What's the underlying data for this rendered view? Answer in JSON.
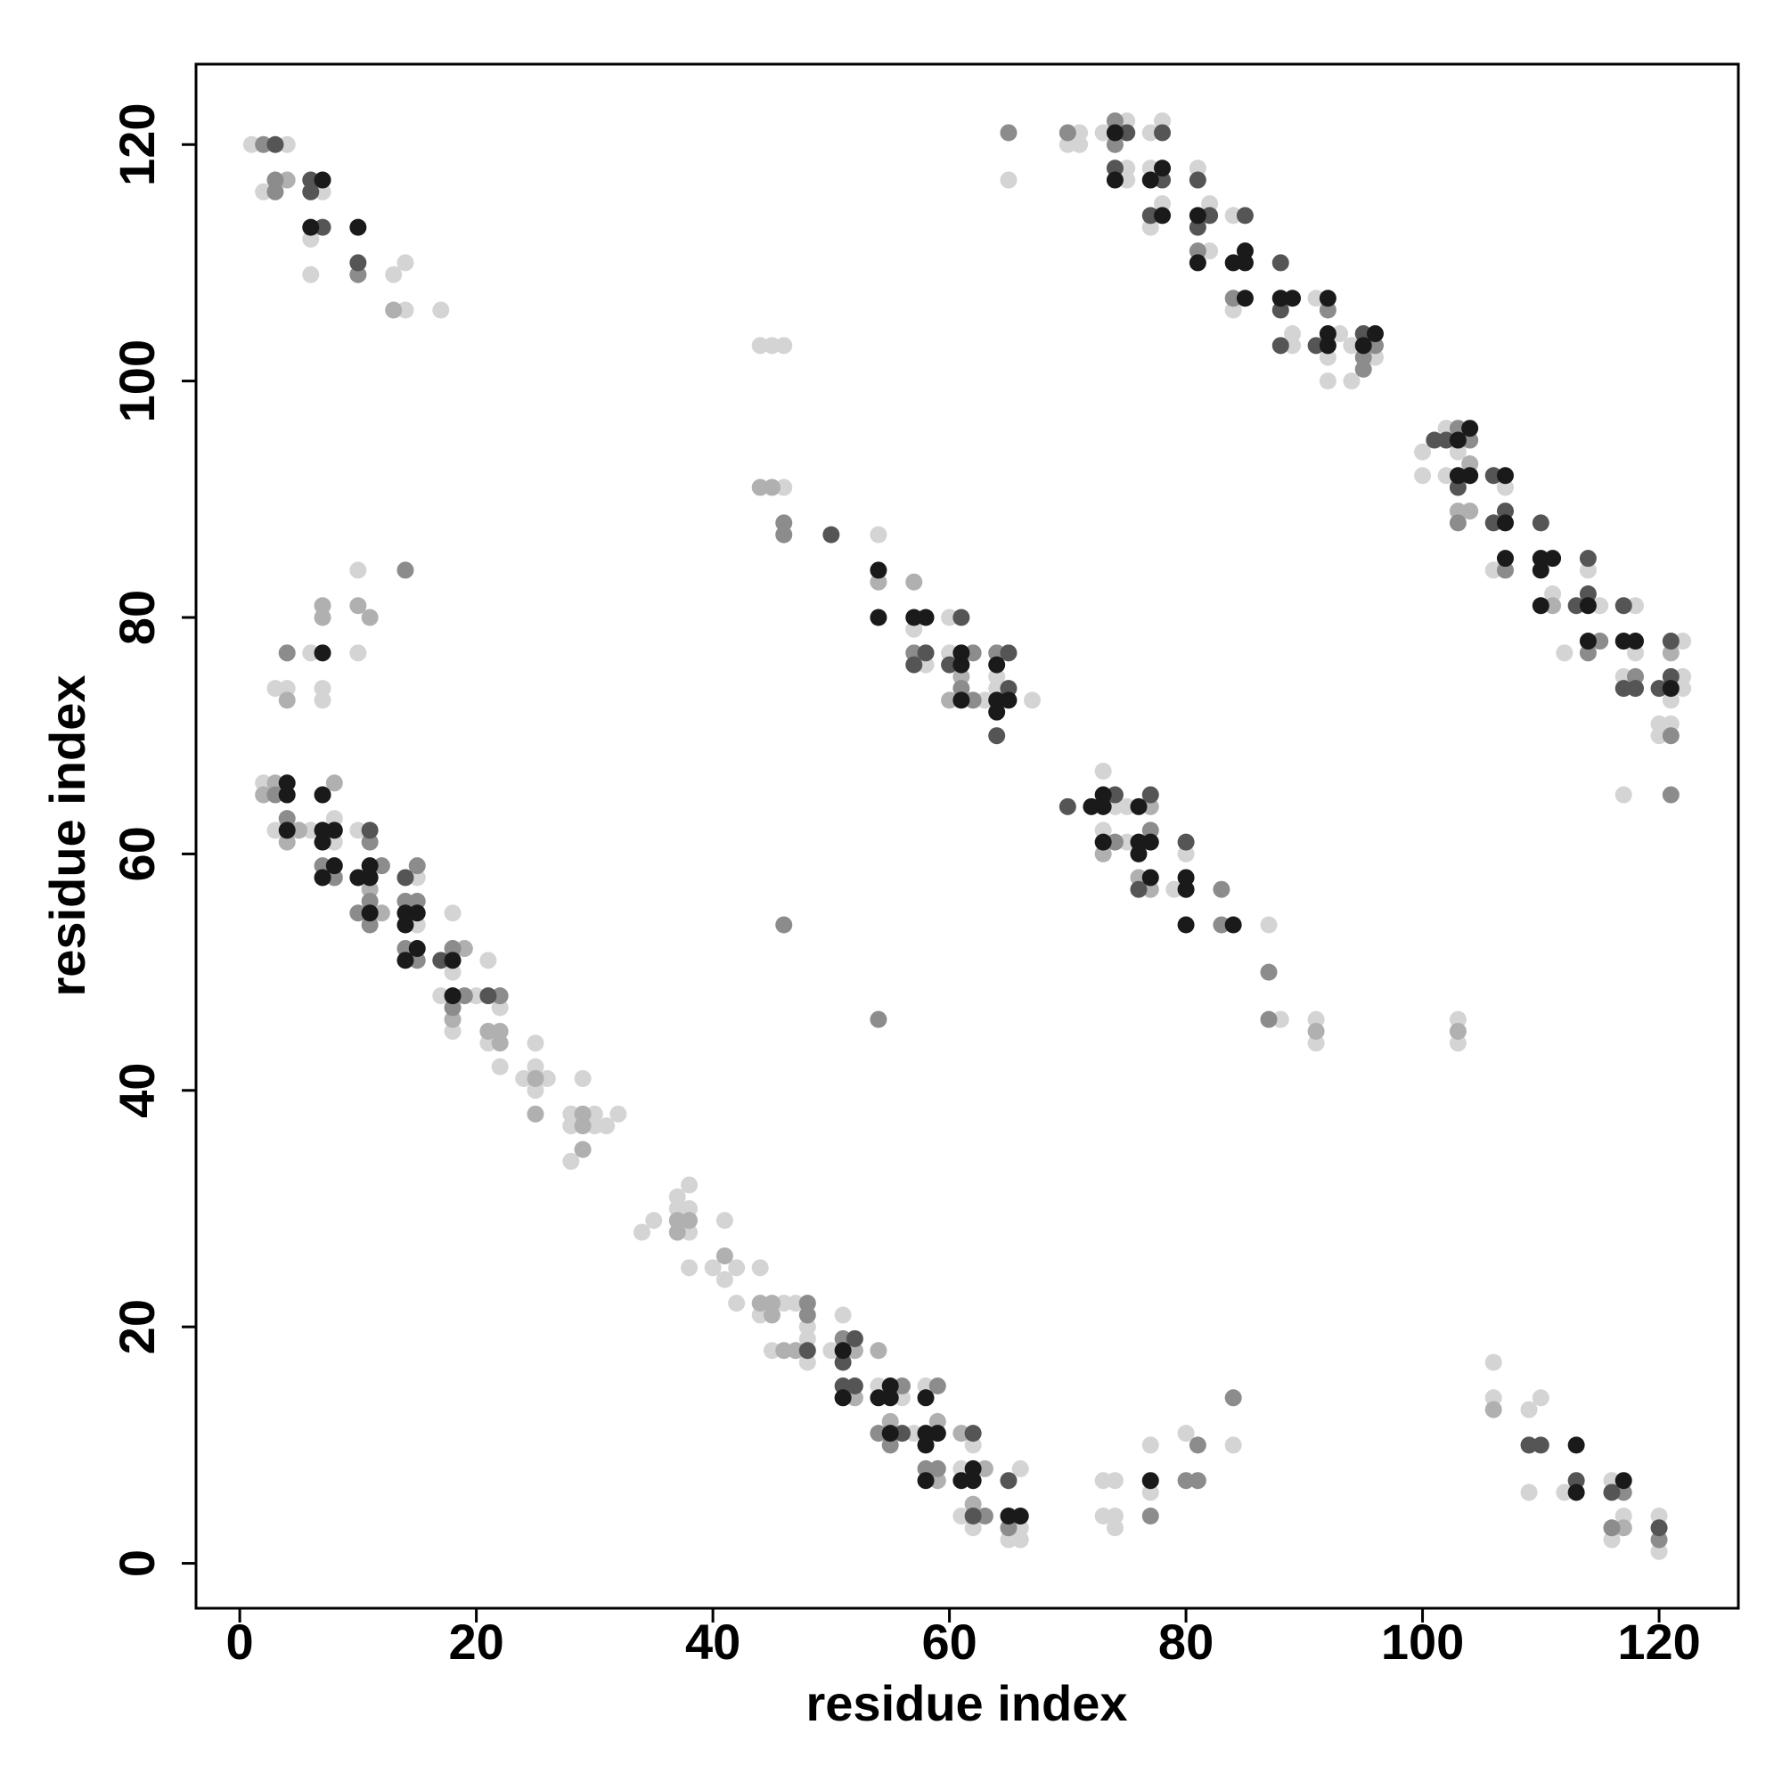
{
  "chart_data": {
    "type": "scatter",
    "x_label": "residue index",
    "y_label": "residue index",
    "xlim": [
      -3.7,
      126.7
    ],
    "ylim": [
      -3.8,
      126.8
    ],
    "xticks": [
      0,
      20,
      40,
      60,
      80,
      100,
      120
    ],
    "yticks": [
      0,
      20,
      40,
      60,
      80,
      100,
      120
    ],
    "series": [
      {
        "color": "#d4d4d4",
        "x": [
          1,
          4,
          2,
          7,
          6,
          6,
          13,
          14,
          14,
          17,
          65,
          70,
          71,
          71,
          73,
          75,
          75,
          75,
          77,
          78,
          77,
          77,
          78,
          81,
          82,
          82,
          84,
          84,
          89,
          89,
          91,
          92,
          92,
          93,
          94,
          94,
          96,
          44,
          45,
          46,
          46,
          54,
          57,
          58,
          60,
          60,
          64,
          64,
          63,
          67,
          73,
          74,
          75,
          73,
          75,
          79,
          80,
          87,
          88,
          91,
          91,
          103,
          103,
          100,
          100,
          102,
          103,
          102,
          107,
          106,
          111,
          114,
          115,
          112,
          118,
          118,
          117,
          117,
          122,
          122,
          122,
          121,
          120,
          121,
          120,
          10,
          6,
          10,
          3,
          4,
          7,
          7,
          2,
          3,
          6,
          8,
          8,
          10,
          15,
          15,
          18,
          18,
          17,
          18,
          20,
          21,
          22,
          21,
          22,
          24,
          25,
          25,
          25,
          26,
          28,
          28,
          29,
          30,
          30,
          31,
          32,
          28,
          34,
          35,
          37,
          37,
          38,
          38,
          38,
          38,
          41,
          40,
          42,
          41,
          42,
          44,
          44,
          46,
          47,
          45,
          48,
          48,
          48,
          50,
          51,
          54,
          56,
          57,
          58,
          61,
          61,
          62,
          62,
          66,
          66,
          65,
          66,
          73,
          74,
          73,
          74,
          74,
          77,
          77,
          80,
          84,
          106,
          106,
          109,
          110,
          109,
          112,
          116,
          117,
          116,
          120,
          120
        ],
        "values": [
          120,
          120,
          116,
          116,
          112,
          109,
          109,
          110,
          106,
          106,
          117,
          120,
          121,
          120,
          121,
          122,
          118,
          117,
          121,
          122,
          118,
          113,
          115,
          118,
          115,
          111,
          114,
          106,
          104,
          103,
          107,
          102,
          100,
          104,
          103,
          100,
          102,
          103,
          103,
          103,
          91,
          87,
          79,
          76,
          80,
          77,
          75,
          74,
          73,
          73,
          67,
          64,
          64,
          62,
          61,
          57,
          60,
          54,
          46,
          46,
          44,
          46,
          44,
          94,
          92,
          96,
          94,
          92,
          91,
          84,
          82,
          84,
          81,
          77,
          81,
          77,
          75,
          65,
          78,
          75,
          74,
          73,
          71,
          71,
          70,
          84,
          77,
          77,
          74,
          74,
          74,
          73,
          66,
          62,
          62,
          63,
          61,
          62,
          58,
          54,
          55,
          50,
          48,
          45,
          48,
          51,
          47,
          44,
          42,
          41,
          44,
          42,
          40,
          41,
          38,
          37,
          41,
          38,
          37,
          37,
          38,
          34,
          28,
          29,
          31,
          30,
          32,
          28,
          30,
          25,
          29,
          25,
          25,
          24,
          22,
          25,
          21,
          22,
          22,
          18,
          20,
          19,
          17,
          18,
          21,
          15,
          14,
          11,
          15,
          8,
          4,
          10,
          3,
          8,
          3,
          2,
          2,
          7,
          7,
          4,
          4,
          3,
          10,
          6,
          11,
          10,
          17,
          14,
          13,
          14,
          6,
          6,
          7,
          4,
          2,
          4,
          1
        ]
      },
      {
        "color": "#b0b0b0",
        "x": [
          4,
          13,
          44,
          45,
          54,
          57,
          61,
          60,
          73,
          77,
          76,
          77,
          91,
          103,
          104,
          103,
          104,
          111,
          121,
          7,
          7,
          10,
          11,
          4,
          3,
          2,
          4,
          5,
          8,
          11,
          12,
          19,
          18,
          21,
          22,
          22,
          25,
          25,
          29,
          29,
          29,
          37,
          38,
          37,
          41,
          44,
          45,
          45,
          46,
          47,
          52,
          52,
          54,
          55,
          59,
          59,
          61,
          63,
          62,
          106,
          117
        ],
        "values": [
          117,
          106,
          91,
          91,
          83,
          83,
          75,
          73,
          60,
          64,
          58,
          57,
          45,
          45,
          93,
          89,
          89,
          81,
          77,
          81,
          80,
          81,
          80,
          73,
          66,
          65,
          61,
          62,
          66,
          57,
          55,
          52,
          46,
          45,
          45,
          44,
          41,
          38,
          38,
          37,
          35,
          29,
          29,
          28,
          26,
          22,
          22,
          21,
          18,
          18,
          18,
          14,
          18,
          12,
          12,
          7,
          11,
          8,
          5,
          13,
          3
        ]
      },
      {
        "color": "#8c8c8c",
        "x": [
          2,
          3,
          3,
          10,
          65,
          70,
          74,
          74,
          81,
          84,
          92,
          96,
          95,
          95,
          46,
          46,
          46,
          57,
          62,
          61,
          62,
          64,
          74,
          77,
          83,
          83,
          87,
          87,
          54,
          103,
          104,
          103,
          107,
          115,
          114,
          118,
          121,
          121,
          14,
          4,
          3,
          4,
          7,
          8,
          11,
          12,
          11,
          10,
          11,
          15,
          14,
          15,
          14,
          15,
          18,
          19,
          18,
          22,
          48,
          48,
          51,
          56,
          54,
          55,
          59,
          58,
          59,
          63,
          65,
          77,
          81,
          80,
          81,
          84,
          117,
          116,
          120
        ],
        "values": [
          120,
          116,
          117,
          109,
          121,
          121,
          122,
          120,
          111,
          107,
          106,
          103,
          102,
          101,
          88,
          87,
          54,
          77,
          77,
          74,
          73,
          77,
          61,
          62,
          57,
          54,
          50,
          46,
          46,
          96,
          95,
          88,
          84,
          78,
          77,
          75,
          70,
          65,
          84,
          77,
          65,
          63,
          59,
          58,
          61,
          59,
          56,
          55,
          54,
          59,
          56,
          56,
          52,
          51,
          52,
          48,
          47,
          48,
          22,
          21,
          19,
          15,
          11,
          10,
          15,
          8,
          8,
          4,
          3,
          4,
          10,
          7,
          7,
          14,
          6,
          3,
          2
        ]
      },
      {
        "color": "#555555",
        "x": [
          3,
          6,
          6,
          10,
          7,
          75,
          74,
          78,
          78,
          77,
          81,
          81,
          82,
          85,
          88,
          88,
          88,
          91,
          95,
          50,
          58,
          57,
          61,
          60,
          65,
          65,
          64,
          70,
          74,
          77,
          76,
          80,
          101,
          102,
          103,
          106,
          106,
          107,
          110,
          114,
          113,
          114,
          117,
          117,
          118,
          121,
          121,
          120,
          11,
          14,
          17,
          21,
          48,
          52,
          51,
          51,
          52,
          56,
          62,
          62,
          65,
          109,
          110,
          113,
          116,
          120
        ],
        "values": [
          120,
          117,
          116,
          110,
          113,
          121,
          118,
          121,
          117,
          114,
          117,
          113,
          114,
          114,
          110,
          106,
          103,
          103,
          104,
          87,
          77,
          76,
          80,
          76,
          77,
          74,
          70,
          64,
          65,
          65,
          57,
          61,
          95,
          95,
          91,
          92,
          88,
          89,
          88,
          85,
          81,
          82,
          81,
          74,
          74,
          78,
          75,
          74,
          62,
          58,
          51,
          48,
          18,
          19,
          17,
          15,
          15,
          11,
          11,
          4,
          7,
          10,
          10,
          7,
          6,
          3
        ]
      },
      {
        "color": "#1a1a1a",
        "x": [
          7,
          6,
          10,
          74,
          74,
          77,
          78,
          78,
          81,
          81,
          84,
          85,
          85,
          85,
          88,
          89,
          92,
          92,
          92,
          96,
          95,
          54,
          54,
          57,
          58,
          61,
          61,
          61,
          64,
          64,
          65,
          64,
          72,
          73,
          73,
          73,
          76,
          76,
          77,
          76,
          77,
          80,
          80,
          80,
          84,
          104,
          103,
          103,
          104,
          107,
          107,
          107,
          110,
          111,
          110,
          110,
          114,
          114,
          117,
          118,
          121,
          7,
          4,
          4,
          4,
          7,
          7,
          8,
          7,
          8,
          7,
          10,
          11,
          11,
          11,
          14,
          15,
          14,
          15,
          14,
          18,
          18,
          51,
          51,
          55,
          54,
          55,
          55,
          58,
          58,
          59,
          58,
          58,
          62,
          61,
          62,
          65,
          66,
          77,
          113,
          113,
          117
        ],
        "values": [
          117,
          113,
          113,
          121,
          117,
          117,
          118,
          114,
          114,
          110,
          110,
          111,
          110,
          107,
          107,
          107,
          107,
          104,
          103,
          104,
          103,
          84,
          80,
          80,
          80,
          77,
          76,
          73,
          76,
          73,
          73,
          72,
          64,
          65,
          64,
          61,
          64,
          61,
          61,
          60,
          58,
          58,
          57,
          54,
          54,
          96,
          95,
          92,
          92,
          92,
          88,
          85,
          85,
          85,
          84,
          81,
          81,
          78,
          78,
          78,
          74,
          77,
          66,
          65,
          62,
          65,
          62,
          62,
          61,
          59,
          58,
          58,
          58,
          59,
          55,
          55,
          55,
          54,
          52,
          51,
          51,
          48,
          18,
          14,
          15,
          14,
          14,
          11,
          14,
          11,
          11,
          10,
          7,
          8,
          7,
          7,
          4,
          4,
          7,
          10,
          6,
          7
        ]
      }
    ]
  }
}
